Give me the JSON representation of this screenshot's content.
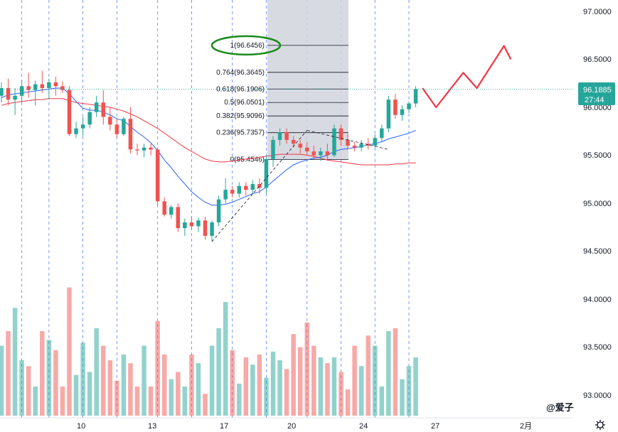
{
  "chart_data": {
    "type": "candlestick",
    "price_axis": {
      "ticks": [
        "97.0000",
        "96.5000",
        "96.0000",
        "95.5000",
        "95.0000",
        "94.5000",
        "94.0000",
        "93.5000",
        "93.0000"
      ],
      "values": [
        97.0,
        96.5,
        96.0,
        95.5,
        95.0,
        94.5,
        94.0,
        93.5,
        93.0
      ],
      "ylim": [
        92.9,
        97.15
      ]
    },
    "date_axis": {
      "ticks": [
        "10",
        "13",
        "17",
        "20",
        "24",
        "27",
        "2月"
      ],
      "bar_index": [
        12,
        23,
        34,
        45,
        55,
        66,
        80
      ]
    },
    "last_price": {
      "value": "96.1885",
      "countdown": "27:44",
      "price": 96.1885,
      "color": "#26a69a"
    },
    "colors": {
      "up": "#26a69a",
      "down": "#ef5350",
      "ma_fast": "#2962ff",
      "ma_slow": "#f23645",
      "fib_box": "#d1d4dc",
      "annotation_circle": "#1b8a1b",
      "arrow": "#f23645"
    },
    "candles": [
      [
        96.12,
        96.26,
        96.05,
        96.2
      ],
      [
        96.2,
        96.3,
        96.02,
        96.08
      ],
      [
        96.08,
        96.2,
        95.92,
        96.12
      ],
      [
        96.12,
        96.28,
        96.05,
        96.22
      ],
      [
        96.22,
        96.36,
        96.1,
        96.18
      ],
      [
        96.18,
        96.28,
        96.02,
        96.24
      ],
      [
        96.24,
        96.38,
        96.15,
        96.2
      ],
      [
        96.2,
        96.3,
        96.08,
        96.26
      ],
      [
        96.26,
        96.32,
        96.12,
        96.22
      ],
      [
        96.22,
        96.27,
        96.15,
        96.18
      ],
      [
        96.18,
        96.22,
        95.7,
        95.72
      ],
      [
        95.72,
        95.85,
        95.68,
        95.78
      ],
      [
        95.78,
        95.9,
        95.7,
        95.82
      ],
      [
        95.82,
        96.0,
        95.78,
        95.95
      ],
      [
        95.95,
        96.12,
        95.9,
        96.05
      ],
      [
        96.05,
        96.18,
        95.82,
        95.9
      ],
      [
        95.9,
        96.0,
        95.76,
        95.82
      ],
      [
        95.82,
        95.88,
        95.68,
        95.72
      ],
      [
        95.72,
        95.9,
        95.7,
        95.88
      ],
      [
        95.88,
        96.0,
        95.52,
        95.56
      ],
      [
        95.56,
        95.62,
        95.5,
        95.55
      ],
      [
        95.55,
        95.62,
        95.48,
        95.58
      ],
      [
        95.58,
        95.62,
        95.5,
        95.56
      ],
      [
        95.56,
        95.58,
        94.98,
        95.02
      ],
      [
        95.02,
        95.06,
        94.86,
        94.88
      ],
      [
        94.88,
        94.98,
        94.84,
        94.96
      ],
      [
        94.96,
        95.0,
        94.7,
        94.74
      ],
      [
        94.74,
        94.84,
        94.66,
        94.8
      ],
      [
        94.8,
        94.86,
        94.72,
        94.76
      ],
      [
        94.76,
        94.85,
        94.7,
        94.82
      ],
      [
        94.82,
        94.86,
        94.62,
        94.66
      ],
      [
        94.66,
        94.82,
        94.6,
        94.8
      ],
      [
        94.8,
        95.08,
        94.76,
        95.04
      ],
      [
        95.04,
        95.26,
        95.0,
        95.14
      ],
      [
        95.14,
        95.18,
        95.06,
        95.1
      ],
      [
        95.1,
        95.22,
        95.06,
        95.18
      ],
      [
        95.18,
        95.22,
        95.08,
        95.14
      ],
      [
        95.14,
        95.24,
        95.1,
        95.2
      ],
      [
        95.2,
        95.26,
        95.1,
        95.16
      ],
      [
        95.16,
        95.5,
        95.1,
        95.46
      ],
      [
        95.46,
        95.7,
        95.38,
        95.66
      ],
      [
        95.66,
        95.78,
        95.6,
        95.74
      ],
      [
        95.74,
        95.78,
        95.62,
        95.66
      ],
      [
        95.66,
        95.7,
        95.58,
        95.62
      ],
      [
        95.62,
        95.66,
        95.52,
        95.58
      ],
      [
        95.58,
        95.64,
        95.5,
        95.54
      ],
      [
        95.54,
        95.6,
        95.46,
        95.5
      ],
      [
        95.5,
        95.58,
        95.44,
        95.54
      ],
      [
        95.54,
        95.62,
        95.46,
        95.5
      ],
      [
        95.5,
        95.82,
        95.48,
        95.78
      ],
      [
        95.78,
        95.82,
        95.6,
        95.66
      ],
      [
        95.66,
        95.72,
        95.56,
        95.6
      ],
      [
        95.6,
        95.64,
        95.54,
        95.58
      ],
      [
        95.58,
        95.66,
        95.54,
        95.62
      ],
      [
        95.62,
        95.68,
        95.56,
        95.6
      ],
      [
        95.6,
        95.72,
        95.58,
        95.68
      ],
      [
        95.68,
        95.82,
        95.64,
        95.78
      ],
      [
        95.78,
        96.12,
        95.74,
        96.08
      ],
      [
        96.08,
        96.14,
        95.88,
        95.92
      ],
      [
        95.92,
        96.02,
        95.86,
        95.98
      ],
      [
        95.98,
        96.06,
        95.94,
        96.04
      ],
      [
        96.04,
        96.22,
        96.0,
        96.19
      ]
    ],
    "volume": [
      0.48,
      0.58,
      0.74,
      0.38,
      0.34,
      0.2,
      0.58,
      0.52,
      0.45,
      0.2,
      0.88,
      0.28,
      0.5,
      0.3,
      0.6,
      0.48,
      0.38,
      0.24,
      0.42,
      0.36,
      0.2,
      0.48,
      0.2,
      0.65,
      0.42,
      0.25,
      0.3,
      0.2,
      0.42,
      0.36,
      0.15,
      0.48,
      0.6,
      0.78,
      0.45,
      0.22,
      0.4,
      0.35,
      0.42,
      0.26,
      0.44,
      0.38,
      0.32,
      0.56,
      0.47,
      0.64,
      0.48,
      0.4,
      0.36,
      0.4,
      0.3,
      0.18,
      0.48,
      0.34,
      0.55,
      0.48,
      0.2,
      0.58,
      0.6,
      0.25,
      0.34,
      0.4
    ],
    "ma_fast": [
      96.1,
      96.13,
      96.14,
      96.15,
      96.16,
      96.17,
      96.18,
      96.19,
      96.2,
      96.2,
      96.14,
      96.06,
      95.99,
      95.97,
      95.97,
      95.95,
      95.92,
      95.88,
      95.86,
      95.8,
      95.74,
      95.69,
      95.63,
      95.55,
      95.45,
      95.37,
      95.28,
      95.2,
      95.12,
      95.06,
      95.01,
      94.98,
      94.98,
      94.99,
      95.01,
      95.04,
      95.07,
      95.1,
      95.12,
      95.17,
      95.23,
      95.29,
      95.35,
      95.4,
      95.43,
      95.45,
      95.47,
      95.48,
      95.5,
      95.54,
      95.56,
      95.57,
      95.58,
      95.59,
      95.61,
      95.62,
      95.64,
      95.67,
      95.69,
      95.71,
      95.73,
      95.76
    ],
    "ma_slow": [
      96.02,
      96.04,
      96.05,
      96.06,
      96.07,
      96.08,
      96.08,
      96.09,
      96.09,
      96.09,
      96.07,
      96.05,
      96.04,
      96.03,
      96.02,
      96.01,
      96.0,
      95.98,
      95.96,
      95.93,
      95.9,
      95.86,
      95.82,
      95.78,
      95.73,
      95.68,
      95.63,
      95.58,
      95.54,
      95.5,
      95.46,
      95.44,
      95.43,
      95.43,
      95.44,
      95.45,
      95.46,
      95.47,
      95.48,
      95.49,
      95.5,
      95.51,
      95.51,
      95.51,
      95.51,
      95.5,
      95.49,
      95.47,
      95.45,
      95.44,
      95.43,
      95.42,
      95.41,
      95.4,
      95.4,
      95.4,
      95.4,
      95.4,
      95.41,
      95.41,
      95.42,
      95.42
    ],
    "vertical_dash_bars": [
      3,
      7,
      12,
      17,
      23,
      28,
      34,
      39,
      45,
      50,
      55,
      60
    ],
    "fib": {
      "box_bar_range": [
        45,
        57
      ],
      "levels": [
        {
          "label": "1(96.6456)",
          "price": 96.6456
        },
        {
          "label": "0.764(96.3645)",
          "price": 96.3645
        },
        {
          "label": "0.618(96.1906)",
          "price": 96.1906
        },
        {
          "label": "0.5(96.0501)",
          "price": 96.0501
        },
        {
          "label": "0.382(95.9096)",
          "price": 95.9096
        },
        {
          "label": "0.236(95.7357)",
          "price": 95.7357
        },
        {
          "label": "0(95.4546)",
          "price": 95.4546
        }
      ]
    },
    "trend_lines": [
      {
        "from": [
          31,
          94.6
        ],
        "to": [
          45,
          95.76
        ]
      },
      {
        "from": [
          45,
          95.76
        ],
        "to": [
          57,
          95.56
        ]
      }
    ],
    "forecast_arrow": [
      [
        62,
        96.2
      ],
      [
        64,
        96.0
      ],
      [
        68,
        96.36
      ],
      [
        70,
        96.2
      ],
      [
        74,
        96.64
      ],
      [
        75,
        96.5
      ]
    ]
  },
  "watermark": "@爱子"
}
